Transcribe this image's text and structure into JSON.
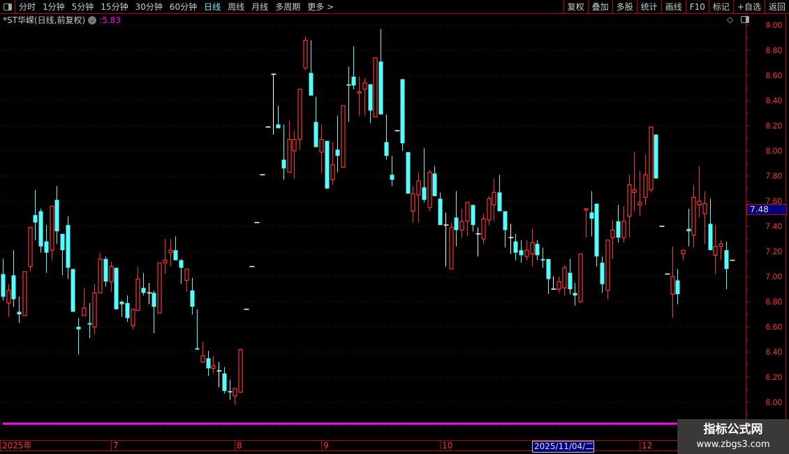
{
  "toolbar": {
    "periods": [
      "分时",
      "1分钟",
      "5分钟",
      "15分钟",
      "30分钟",
      "60分钟",
      "日线",
      "周线",
      "月线",
      "多周期",
      "更多 >"
    ],
    "active_period": "日线",
    "right_buttons": [
      "复权",
      "叠加",
      "多股",
      "统计",
      "画线",
      "F10",
      "标记",
      "+自选",
      "返回"
    ]
  },
  "title": {
    "stock": "*ST华嵘(日线,前复权)",
    "separator": ":",
    "value": "5.83"
  },
  "price_tag": "7.48",
  "watermark": {
    "name": "指标公式网",
    "url": "www.zbgs3.com"
  },
  "colors": {
    "up": "#ff3232",
    "down": "#54fcfc",
    "flat": "#ffffff",
    "indicator": "#ff00ff",
    "grid": "#8b0000",
    "axis": "#ff3232",
    "highlight_bg": "#000080"
  },
  "chart_data": {
    "type": "candlestick",
    "ylim": [
      5.8,
      9.0
    ],
    "yticks": [
      "9.00",
      "8.80",
      "8.60",
      "8.40",
      "8.20",
      "8.00",
      "7.80",
      "7.60",
      "7.40",
      "7.20",
      "7.00",
      "6.80",
      "6.60",
      "6.40",
      "6.20",
      "6.00"
    ],
    "grid": true,
    "indicator_line": 5.83,
    "ohlc": [
      [
        7.02,
        7.14,
        6.81,
        6.84
      ],
      [
        6.79,
        6.94,
        6.68,
        6.89
      ],
      [
        7.01,
        7.21,
        6.76,
        6.82
      ],
      [
        6.72,
        6.84,
        6.63,
        6.7
      ],
      [
        6.69,
        7.04,
        6.69,
        7.04
      ],
      [
        7.08,
        7.39,
        7.04,
        7.39
      ],
      [
        7.49,
        7.69,
        7.29,
        7.43
      ],
      [
        7.52,
        7.54,
        7.19,
        7.24
      ],
      [
        7.28,
        7.41,
        7.03,
        7.19
      ],
      [
        7.21,
        7.56,
        7.13,
        7.56
      ],
      [
        7.61,
        7.72,
        7.26,
        7.36
      ],
      [
        7.34,
        7.34,
        7.01,
        7.21
      ],
      [
        7.41,
        7.48,
        6.98,
        7.07
      ],
      [
        7.06,
        7.06,
        6.72,
        6.72
      ],
      [
        6.6,
        6.67,
        6.38,
        6.58
      ],
      [
        6.69,
        6.91,
        6.69,
        6.75
      ],
      [
        6.63,
        6.79,
        6.51,
        6.62
      ],
      [
        6.6,
        6.94,
        6.54,
        6.87
      ],
      [
        6.87,
        7.19,
        6.87,
        7.14
      ],
      [
        7.14,
        7.16,
        6.92,
        6.96
      ],
      [
        6.96,
        7.12,
        6.88,
        7.08
      ],
      [
        7.07,
        7.07,
        6.74,
        6.74
      ],
      [
        6.8,
        6.81,
        6.68,
        6.78
      ],
      [
        6.79,
        6.85,
        6.64,
        6.67
      ],
      [
        6.61,
        6.74,
        6.58,
        6.74
      ],
      [
        6.73,
        7.08,
        6.73,
        6.98
      ],
      [
        6.91,
        7.03,
        6.85,
        6.87
      ],
      [
        6.87,
        6.95,
        6.78,
        6.87
      ],
      [
        6.87,
        6.89,
        6.55,
        6.76
      ],
      [
        6.71,
        7.11,
        6.71,
        7.11
      ],
      [
        7.11,
        7.3,
        7.02,
        7.13
      ],
      [
        7.19,
        7.3,
        7.08,
        7.21
      ],
      [
        7.21,
        7.32,
        7.13,
        7.13
      ],
      [
        7.13,
        7.14,
        6.94,
        7.07
      ],
      [
        6.97,
        7.06,
        6.88,
        7.06
      ],
      [
        6.89,
        6.99,
        6.7,
        6.76
      ],
      [
        6.43,
        6.74,
        6.42,
        6.42
      ],
      [
        6.32,
        6.48,
        6.32,
        6.37
      ],
      [
        6.35,
        6.41,
        6.21,
        6.27
      ],
      [
        6.27,
        6.37,
        6.23,
        6.29
      ],
      [
        6.25,
        6.32,
        6.12,
        6.25
      ],
      [
        6.23,
        6.28,
        6.07,
        6.09
      ],
      [
        6.09,
        6.18,
        6.02,
        6.08
      ],
      [
        6.05,
        6.11,
        5.98,
        6.11
      ],
      [
        6.08,
        6.42,
        6.08,
        6.42
      ],
      [
        6.74,
        6.74,
        6.74,
        6.74
      ],
      [
        7.08,
        7.08,
        7.08,
        7.08
      ],
      [
        7.43,
        7.43,
        7.43,
        7.43
      ],
      [
        7.81,
        7.81,
        7.81,
        7.81
      ],
      [
        8.19,
        8.19,
        8.19,
        8.19
      ],
      [
        8.61,
        8.61,
        8.13,
        8.61
      ],
      [
        8.21,
        8.36,
        8.18,
        8.18
      ],
      [
        7.93,
        8.21,
        7.77,
        7.86
      ],
      [
        7.83,
        8.24,
        7.83,
        8.09
      ],
      [
        8.0,
        8.16,
        7.78,
        8.09
      ],
      [
        8.09,
        8.49,
        8.01,
        8.49
      ],
      [
        8.66,
        8.91,
        8.64,
        8.88
      ],
      [
        8.62,
        8.88,
        8.44,
        8.44
      ],
      [
        8.23,
        8.43,
        8.03,
        8.03
      ],
      [
        7.99,
        8.21,
        7.82,
        8.09
      ],
      [
        8.08,
        8.08,
        7.7,
        7.7
      ],
      [
        7.77,
        8.07,
        7.73,
        7.89
      ],
      [
        8.01,
        8.28,
        7.83,
        7.96
      ],
      [
        7.87,
        8.36,
        7.87,
        8.36
      ],
      [
        8.53,
        8.67,
        8.23,
        8.52
      ],
      [
        8.59,
        8.83,
        8.49,
        8.52
      ],
      [
        8.46,
        8.59,
        8.28,
        8.47
      ],
      [
        8.49,
        8.58,
        8.28,
        8.54
      ],
      [
        8.53,
        8.53,
        8.22,
        8.32
      ],
      [
        8.27,
        8.74,
        8.27,
        8.74
      ],
      [
        8.71,
        8.97,
        8.29,
        8.29
      ],
      [
        8.07,
        8.29,
        7.93,
        7.96
      ],
      [
        7.81,
        7.96,
        7.72,
        7.77
      ],
      [
        8.16,
        8.16,
        8.16,
        8.16
      ],
      [
        8.57,
        8.57,
        8.0,
        8.06
      ],
      [
        7.99,
        7.99,
        7.66,
        7.66
      ],
      [
        7.52,
        7.72,
        7.43,
        7.66
      ],
      [
        7.65,
        7.83,
        7.43,
        7.76
      ],
      [
        7.71,
        8.02,
        7.59,
        7.61
      ],
      [
        7.55,
        7.85,
        7.52,
        7.83
      ],
      [
        7.82,
        7.88,
        7.64,
        7.64
      ],
      [
        7.62,
        7.67,
        7.41,
        7.41
      ],
      [
        7.41,
        7.51,
        7.08,
        7.41
      ],
      [
        7.06,
        7.43,
        7.06,
        7.39
      ],
      [
        7.47,
        7.68,
        7.24,
        7.37
      ],
      [
        7.37,
        7.54,
        7.31,
        7.44
      ],
      [
        7.44,
        7.59,
        7.32,
        7.59
      ],
      [
        7.57,
        7.57,
        7.36,
        7.41
      ],
      [
        7.34,
        7.39,
        7.16,
        7.34
      ],
      [
        7.3,
        7.5,
        7.26,
        7.46
      ],
      [
        7.45,
        7.64,
        7.41,
        7.62
      ],
      [
        7.57,
        7.78,
        7.44,
        7.67
      ],
      [
        7.67,
        7.81,
        7.52,
        7.52
      ],
      [
        7.52,
        7.52,
        7.23,
        7.37
      ],
      [
        7.31,
        7.42,
        7.18,
        7.31
      ],
      [
        7.28,
        7.34,
        7.13,
        7.19
      ],
      [
        7.21,
        7.29,
        7.11,
        7.17
      ],
      [
        7.16,
        7.29,
        7.13,
        7.21
      ],
      [
        7.18,
        7.38,
        7.08,
        7.27
      ],
      [
        7.26,
        7.29,
        7.13,
        7.17
      ],
      [
        7.14,
        7.23,
        7.07,
        7.13
      ],
      [
        7.14,
        7.14,
        6.86,
        6.98
      ],
      [
        6.9,
        7.0,
        6.9,
        6.9
      ],
      [
        6.9,
        7.0,
        6.87,
        6.96
      ],
      [
        6.91,
        7.09,
        6.85,
        7.07
      ],
      [
        7.03,
        7.14,
        6.86,
        6.9
      ],
      [
        6.87,
        6.95,
        6.77,
        6.85
      ],
      [
        6.8,
        7.18,
        6.79,
        7.18
      ],
      [
        7.53,
        7.54,
        7.31,
        7.54
      ],
      [
        7.51,
        7.68,
        7.32,
        7.46
      ],
      [
        7.58,
        7.58,
        7.08,
        7.16
      ],
      [
        7.11,
        7.16,
        6.87,
        6.94
      ],
      [
        6.89,
        7.29,
        6.82,
        7.29
      ],
      [
        7.31,
        7.45,
        7.14,
        7.37
      ],
      [
        7.44,
        7.57,
        7.27,
        7.31
      ],
      [
        7.31,
        7.56,
        7.27,
        7.44
      ],
      [
        7.48,
        7.81,
        7.31,
        7.73
      ],
      [
        7.67,
        7.99,
        7.52,
        7.69
      ],
      [
        7.57,
        7.84,
        7.48,
        7.59
      ],
      [
        7.63,
        7.97,
        7.57,
        7.81
      ],
      [
        7.69,
        8.19,
        7.67,
        8.19
      ],
      [
        8.13,
        8.13,
        7.78,
        7.78
      ],
      [
        7.4,
        7.4,
        7.4,
        7.4
      ],
      [
        7.02,
        7.02,
        7.02,
        7.02
      ],
      [
        6.86,
        7.24,
        6.67,
        7.0
      ],
      [
        6.97,
        7.06,
        6.78,
        6.86
      ],
      [
        7.18,
        7.21,
        7.13,
        7.21
      ],
      [
        7.38,
        7.54,
        7.24,
        7.36
      ],
      [
        7.33,
        7.73,
        7.23,
        7.63
      ],
      [
        7.57,
        7.88,
        7.47,
        7.6
      ],
      [
        7.5,
        7.68,
        7.26,
        7.58
      ],
      [
        7.42,
        7.62,
        7.21,
        7.21
      ],
      [
        7.17,
        7.41,
        7.02,
        7.24
      ],
      [
        7.24,
        7.29,
        7.13,
        7.26
      ],
      [
        7.21,
        7.28,
        6.9,
        7.06
      ],
      [
        7.13,
        7.13,
        7.13,
        7.13
      ]
    ],
    "x_labels": [
      {
        "label": "2025年",
        "candle": 0
      },
      {
        "label": "7",
        "candle": 20
      },
      {
        "label": "8",
        "candle": 43
      },
      {
        "label": "9",
        "candle": 59
      },
      {
        "label": "10",
        "candle": 81
      },
      {
        "label": "2025/11/04/二",
        "candle": 98,
        "highlighted": true
      },
      {
        "label": "12",
        "candle": 118
      }
    ]
  }
}
